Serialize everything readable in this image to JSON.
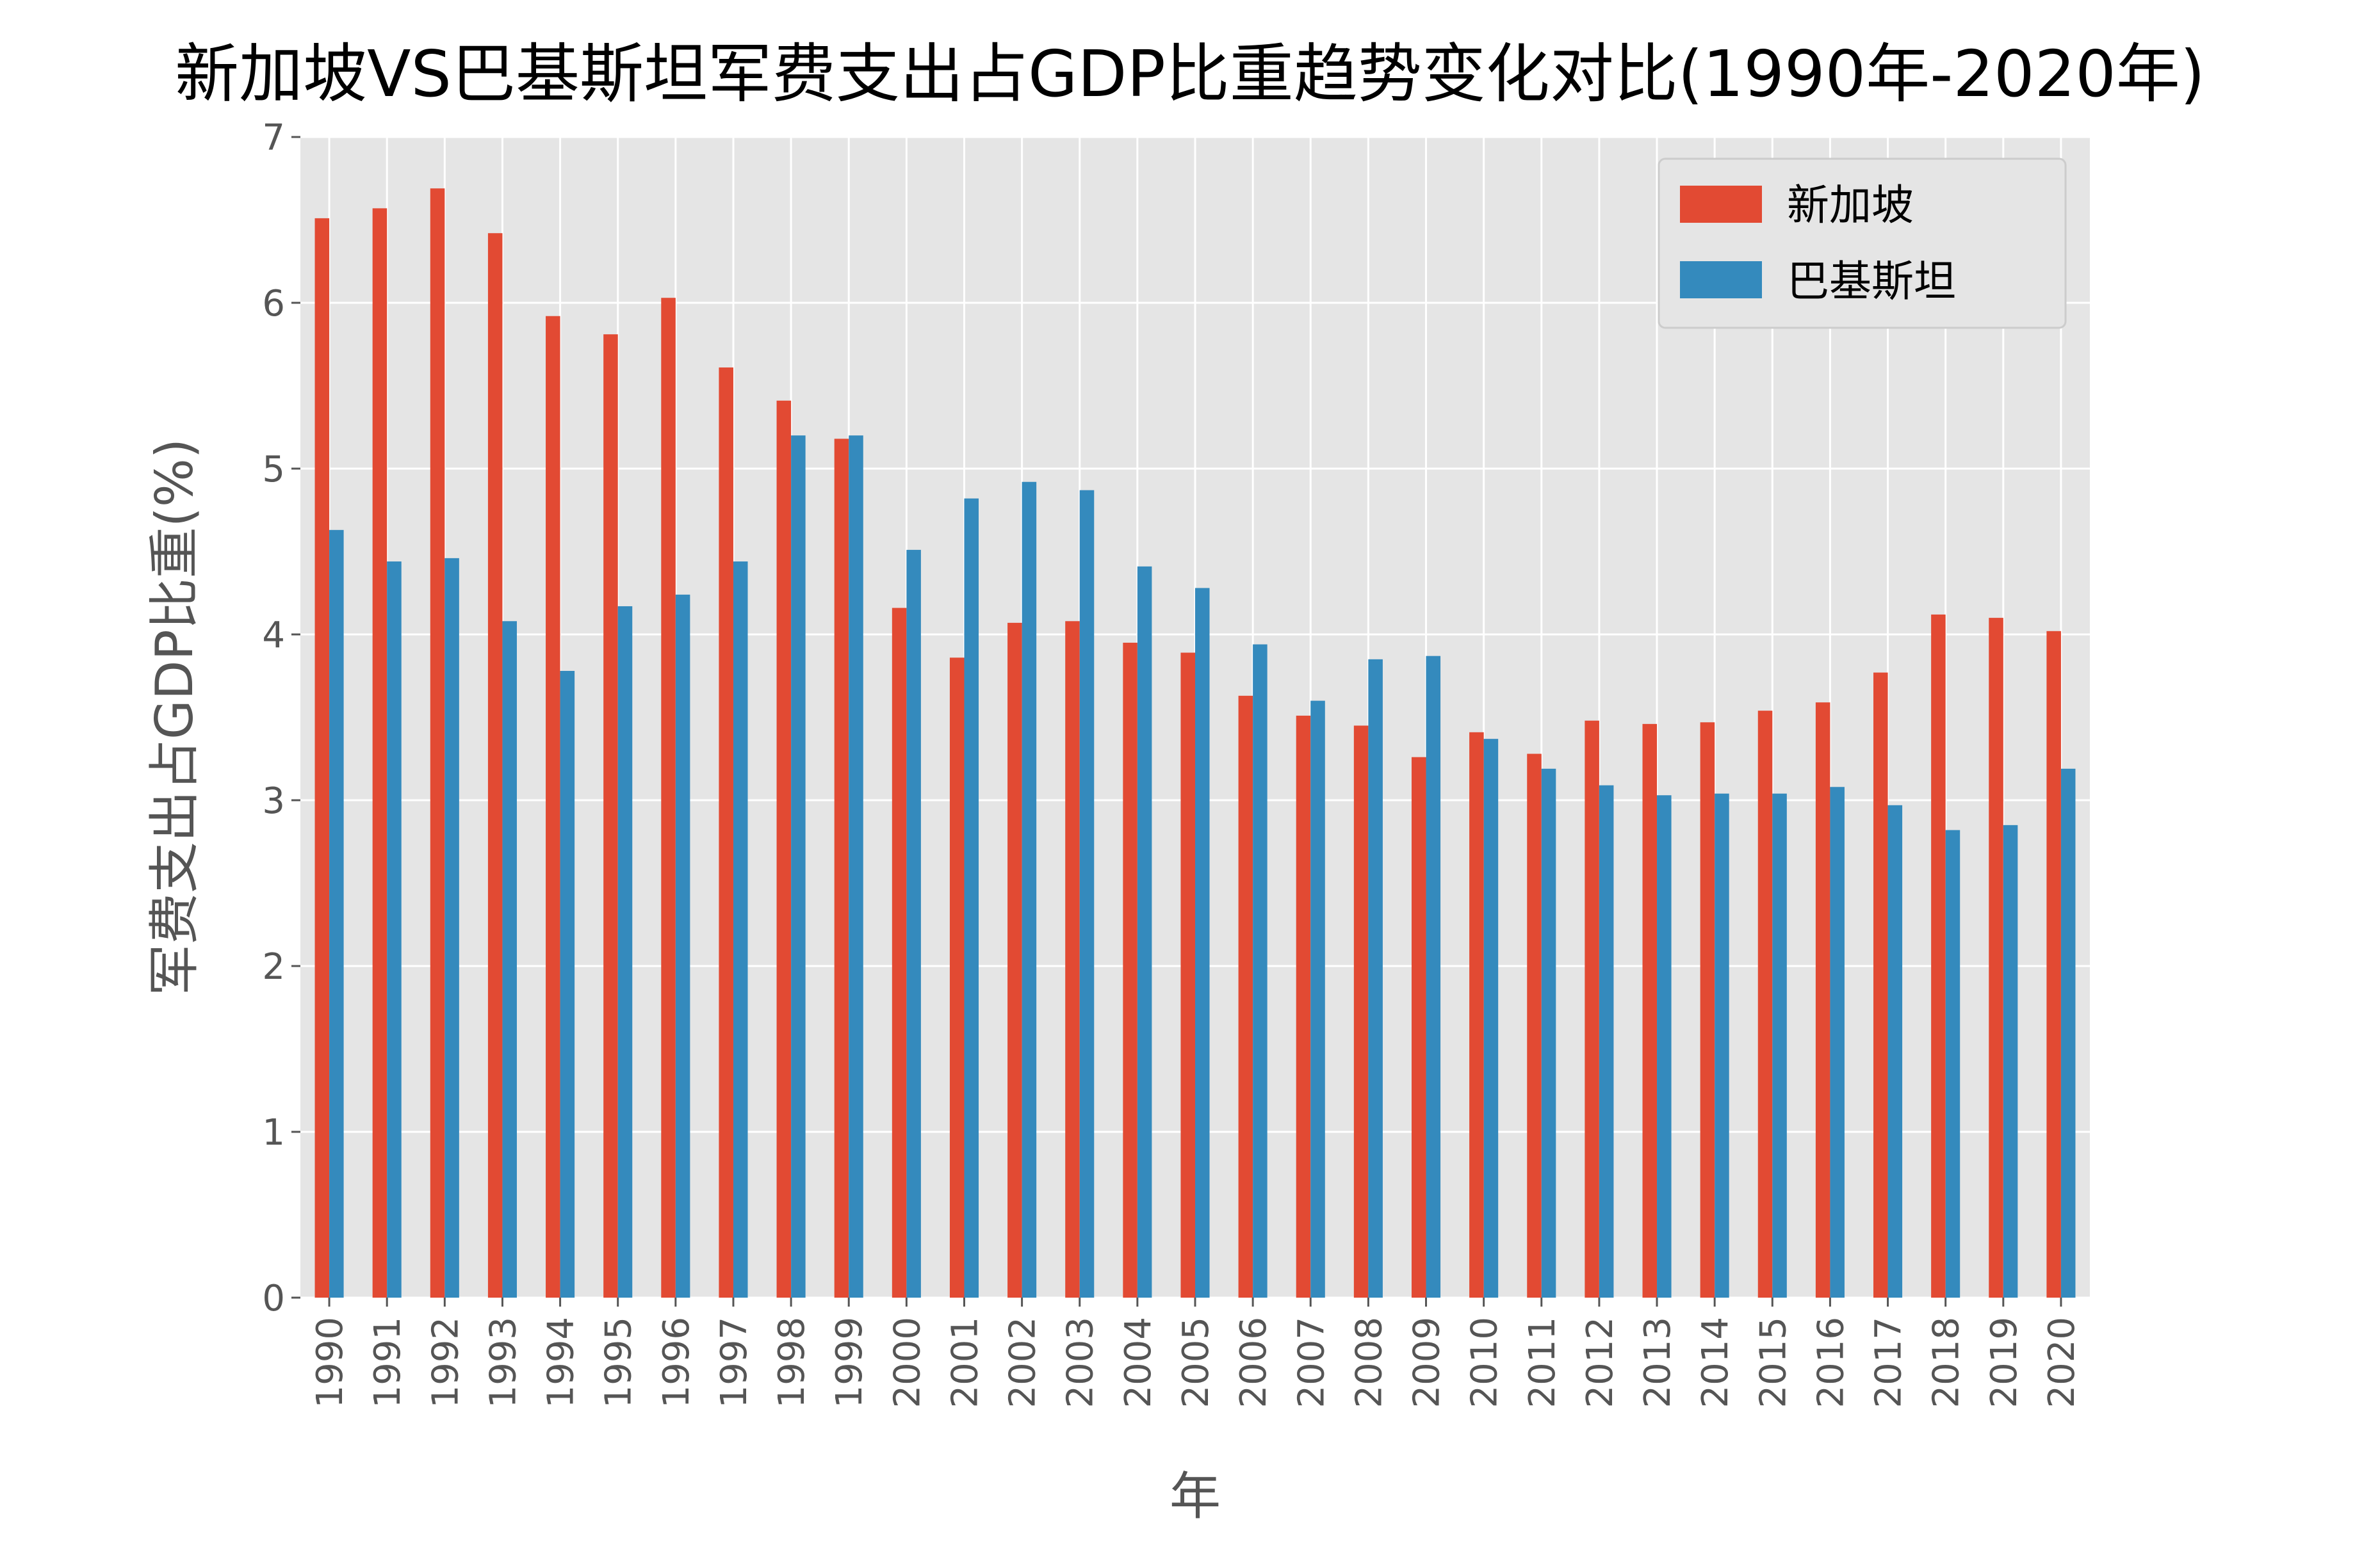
{
  "chart_data": {
    "type": "bar",
    "title": "新加坡VS巴基斯坦军费支出占GDP比重趋势变化对比(1990年-2020年)",
    "xlabel": "年",
    "ylabel": "军费支出占GDP比重(%)",
    "ylim": [
      0,
      7
    ],
    "yticks": [
      "0",
      "1",
      "2",
      "3",
      "4",
      "5",
      "6",
      "7"
    ],
    "grid": true,
    "legend_position": "top-right",
    "categories": [
      "1990",
      "1991",
      "1992",
      "1993",
      "1994",
      "1995",
      "1996",
      "1997",
      "1998",
      "1999",
      "2000",
      "2001",
      "2002",
      "2003",
      "2004",
      "2005",
      "2006",
      "2007",
      "2008",
      "2009",
      "2010",
      "2011",
      "2012",
      "2013",
      "2014",
      "2015",
      "2016",
      "2017",
      "2018",
      "2019",
      "2020"
    ],
    "series": [
      {
        "name": "新加坡",
        "color": "#E24A33",
        "values": [
          6.51,
          6.57,
          6.69,
          6.42,
          5.92,
          5.81,
          6.03,
          5.61,
          5.41,
          5.18,
          4.16,
          3.86,
          4.07,
          4.08,
          3.95,
          3.89,
          3.63,
          3.51,
          3.45,
          3.26,
          3.41,
          3.28,
          3.48,
          3.46,
          3.47,
          3.54,
          3.59,
          3.77,
          4.12,
          4.1,
          4.02
        ]
      },
      {
        "name": "巴基斯坦",
        "color": "#348ABD",
        "values": [
          4.63,
          4.44,
          4.46,
          4.08,
          3.78,
          4.17,
          4.24,
          4.44,
          5.2,
          5.2,
          4.51,
          4.82,
          4.92,
          4.87,
          4.41,
          4.28,
          3.94,
          3.6,
          3.85,
          3.87,
          3.37,
          3.19,
          3.09,
          3.03,
          3.04,
          3.04,
          3.08,
          2.97,
          2.82,
          2.85,
          3.19
        ]
      }
    ],
    "background": "#E5E5E5"
  }
}
